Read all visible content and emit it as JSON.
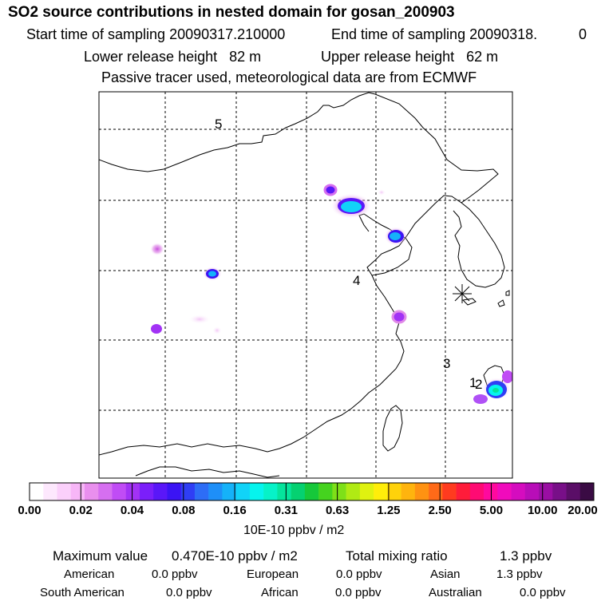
{
  "header": {
    "title": "SO2 source contributions in nested domain for gosan_200903",
    "start_label": "Start time of sampling 20090317.210000",
    "end_label": "End time of sampling 20090318.",
    "end_suffix": "0",
    "lower_label": "Lower release height   82 m",
    "upper_label": "Upper release height   62 m",
    "info": "Passive tracer used, meteorological data are from ECMWF"
  },
  "map": {
    "point_labels": [
      "5",
      "4",
      "3",
      "1",
      "2"
    ],
    "station_marker": "receptor-star"
  },
  "colorbar": {
    "ticks": [
      "0.00",
      "0.02",
      "0.04",
      "0.08",
      "0.16",
      "0.31",
      "0.63",
      "1.25",
      "2.50",
      "5.00",
      "10.00",
      "20.00"
    ],
    "units": "10E-10 ppbv / m2",
    "colors": [
      "#ffffff",
      "#fde8fd",
      "#fbd0fb",
      "#f7b6f7",
      "#e98fee",
      "#d66ff0",
      "#c04cf5",
      "#a232f5",
      "#7b1ffa",
      "#5a17f8",
      "#3b14f4",
      "#2f3ef5",
      "#2d6df6",
      "#1e8ff8",
      "#15b2f9",
      "#11d3f8",
      "#06f4ee",
      "#06f2c8",
      "#05e49c",
      "#05d171",
      "#16c83a",
      "#45d31f",
      "#7ee018",
      "#b0ea14",
      "#dff210",
      "#ffee0a",
      "#ffd20b",
      "#ffb40e",
      "#ff9212",
      "#ff6a18",
      "#ff3b1f",
      "#ff1c3a",
      "#ff0b73",
      "#ff099e",
      "#f00bbc",
      "#d50cbf",
      "#b80db8",
      "#9a0ea3",
      "#780f88",
      "#5a0e67",
      "#3a0b44"
    ]
  },
  "summary": {
    "max_label": "Maximum value",
    "max_value": "0.470E-10 ppbv / m2",
    "total_label": "Total mixing ratio",
    "total_value": "1.3 ppbv",
    "regions": [
      {
        "name": "American",
        "value": "0.0 ppbv"
      },
      {
        "name": "European",
        "value": "0.0 ppbv"
      },
      {
        "name": "Asian",
        "value": "1.3 ppbv"
      },
      {
        "name": "South American",
        "value": "0.0 ppbv"
      },
      {
        "name": "African",
        "value": "0.0 ppbv"
      },
      {
        "name": "Australian",
        "value": "0.0 ppbv"
      }
    ]
  }
}
